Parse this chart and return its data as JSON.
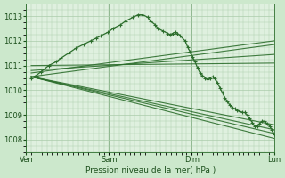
{
  "background_color": "#cce8cc",
  "plot_bg_color": "#dff0df",
  "grid_color": "#aaccaa",
  "line_color": "#2d6e2d",
  "xlabel": "Pression niveau de la mer( hPa )",
  "ylim": [
    1007.5,
    1013.5
  ],
  "yticks": [
    1008,
    1009,
    1010,
    1011,
    1012,
    1013
  ],
  "xtick_labels": [
    "Ven",
    "Sam",
    "Dim",
    "Lun"
  ],
  "xtick_positions": [
    0,
    0.333,
    0.667,
    1.0
  ],
  "straight_lines": [
    {
      "x0": 0.02,
      "y0": 1010.55,
      "x1": 1.0,
      "y1": 1008.05
    },
    {
      "x0": 0.02,
      "y0": 1010.55,
      "x1": 1.0,
      "y1": 1008.25
    },
    {
      "x0": 0.02,
      "y0": 1010.55,
      "x1": 1.0,
      "y1": 1008.4
    },
    {
      "x0": 0.02,
      "y0": 1010.55,
      "x1": 1.0,
      "y1": 1008.6
    },
    {
      "x0": 0.02,
      "y0": 1010.7,
      "x1": 1.0,
      "y1": 1012.0
    },
    {
      "x0": 0.02,
      "y0": 1010.55,
      "x1": 1.0,
      "y1": 1011.85
    },
    {
      "x0": 0.02,
      "y0": 1010.8,
      "x1": 1.0,
      "y1": 1011.45
    },
    {
      "x0": 0.02,
      "y0": 1011.0,
      "x1": 1.0,
      "y1": 1011.1
    }
  ],
  "detailed_x": [
    0.02,
    0.04,
    0.06,
    0.09,
    0.12,
    0.14,
    0.17,
    0.2,
    0.23,
    0.26,
    0.28,
    0.3,
    0.33,
    0.35,
    0.38,
    0.4,
    0.43,
    0.45,
    0.47,
    0.49,
    0.5,
    0.52,
    0.53,
    0.55,
    0.57,
    0.58,
    0.59,
    0.6,
    0.61,
    0.62,
    0.64,
    0.65,
    0.66,
    0.67,
    0.68,
    0.69,
    0.7,
    0.71,
    0.72,
    0.73,
    0.74,
    0.75,
    0.76,
    0.77,
    0.78,
    0.79,
    0.8,
    0.81,
    0.82,
    0.83,
    0.84,
    0.85,
    0.86,
    0.87,
    0.88,
    0.89,
    0.9,
    0.91,
    0.92,
    0.93,
    0.94,
    0.95,
    0.96,
    0.97,
    0.98,
    0.99,
    1.0
  ],
  "detailed_y": [
    1010.5,
    1010.6,
    1010.75,
    1011.0,
    1011.15,
    1011.3,
    1011.5,
    1011.7,
    1011.85,
    1012.0,
    1012.1,
    1012.2,
    1012.35,
    1012.5,
    1012.65,
    1012.8,
    1012.95,
    1013.05,
    1013.05,
    1012.95,
    1012.8,
    1012.65,
    1012.5,
    1012.4,
    1012.3,
    1012.25,
    1012.3,
    1012.35,
    1012.3,
    1012.2,
    1012.0,
    1011.75,
    1011.55,
    1011.35,
    1011.15,
    1010.9,
    1010.7,
    1010.6,
    1010.5,
    1010.45,
    1010.5,
    1010.55,
    1010.5,
    1010.3,
    1010.1,
    1009.9,
    1009.7,
    1009.55,
    1009.4,
    1009.3,
    1009.25,
    1009.2,
    1009.15,
    1009.1,
    1009.1,
    1009.0,
    1008.85,
    1008.7,
    1008.55,
    1008.55,
    1008.65,
    1008.75,
    1008.75,
    1008.65,
    1008.55,
    1008.4,
    1008.2
  ],
  "vline_positions": [
    0.0,
    0.333,
    0.667,
    1.0
  ],
  "figsize": [
    3.2,
    2.0
  ],
  "dpi": 100
}
